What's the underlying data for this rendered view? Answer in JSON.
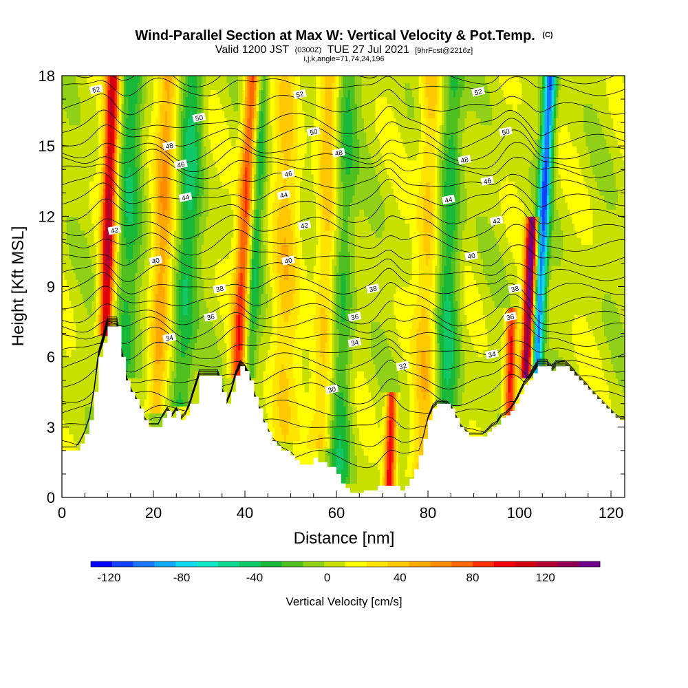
{
  "title": {
    "main": "Wind-Parallel Section at Max W: Vertical Velocity & Pot.Temp.",
    "main_suffix": "(C)",
    "valid_prefix": "Valid 1200 JST",
    "valid_utc": "(0300Z)",
    "valid_date": "TUE 27 Jul 2021",
    "forecast": "[9hrFcst@2216z]",
    "indices": "i,j,k,angle=71,74,24,196"
  },
  "chart_data": {
    "type": "heatmap",
    "title": "Wind-Parallel Section at Max W: Vertical Velocity & Pot.Temp.",
    "xlabel": "Distance [nm]",
    "ylabel": "Height [Kft MSL]",
    "xlim": [
      0,
      123
    ],
    "ylim": [
      0,
      18
    ],
    "x_ticks": [
      "0",
      "20",
      "40",
      "60",
      "80",
      "100",
      "120"
    ],
    "y_ticks": [
      "0",
      "3",
      "6",
      "9",
      "12",
      "15",
      "18"
    ],
    "colorbar": {
      "label": "Vertical Velocity [cm/s]",
      "tick_labels": [
        "-120",
        "-80",
        "-40",
        "0",
        "40",
        "80",
        "120"
      ],
      "range": [
        -130,
        150
      ],
      "colors": [
        "#0000ff",
        "#1040ff",
        "#1a78ff",
        "#10a8f8",
        "#10d8f0",
        "#10e8c8",
        "#10d890",
        "#10c868",
        "#18b838",
        "#50c020",
        "#90d018",
        "#c8e000",
        "#ffff00",
        "#ffe400",
        "#ffc800",
        "#ffa800",
        "#ff8c00",
        "#ff6800",
        "#ff3000",
        "#f00000",
        "#d00010",
        "#b00030",
        "#900050",
        "#70008c"
      ]
    },
    "terrain_kft": [
      [
        0,
        2.0
      ],
      [
        3,
        2.0
      ],
      [
        4,
        2.3
      ],
      [
        5,
        2.7
      ],
      [
        6,
        3.3
      ],
      [
        7,
        4.5
      ],
      [
        8,
        6.0
      ],
      [
        9,
        6.6
      ],
      [
        10,
        7.3
      ],
      [
        12,
        7.3
      ],
      [
        13,
        6.0
      ],
      [
        14,
        5.0
      ],
      [
        15,
        4.5
      ],
      [
        16,
        4.2
      ],
      [
        17,
        3.8
      ],
      [
        18,
        3.3
      ],
      [
        19,
        3.0
      ],
      [
        21,
        3.0
      ],
      [
        22,
        3.4
      ],
      [
        23,
        3.7
      ],
      [
        24,
        3.4
      ],
      [
        25,
        3.7
      ],
      [
        26,
        3.3
      ],
      [
        27,
        3.5
      ],
      [
        28,
        4.0
      ],
      [
        30,
        5.2
      ],
      [
        34,
        5.2
      ],
      [
        35,
        4.5
      ],
      [
        36,
        4.0
      ],
      [
        37,
        4.5
      ],
      [
        38,
        5.2
      ],
      [
        39,
        5.6
      ],
      [
        40,
        5.4
      ],
      [
        41,
        5.0
      ],
      [
        42,
        4.3
      ],
      [
        43,
        3.8
      ],
      [
        44,
        3.2
      ],
      [
        45,
        2.8
      ],
      [
        46,
        2.4
      ],
      [
        47,
        2.2
      ],
      [
        48,
        2.0
      ],
      [
        50,
        1.8
      ],
      [
        51,
        1.6
      ],
      [
        52,
        1.4
      ],
      [
        54,
        1.4
      ],
      [
        55,
        1.7
      ],
      [
        56,
        1.5
      ],
      [
        58,
        1.3
      ],
      [
        60,
        1.0
      ],
      [
        61,
        0.6
      ],
      [
        62,
        0.4
      ],
      [
        63,
        0.2
      ],
      [
        65,
        0.2
      ],
      [
        66,
        0.3
      ],
      [
        68,
        0.3
      ],
      [
        69,
        0.5
      ],
      [
        72,
        0.5
      ],
      [
        74,
        0.3
      ],
      [
        75,
        0.5
      ],
      [
        76,
        0.8
      ],
      [
        77,
        1.2
      ],
      [
        78,
        1.8
      ],
      [
        79,
        2.5
      ],
      [
        80,
        3.3
      ],
      [
        81,
        3.8
      ],
      [
        82,
        4.0
      ],
      [
        84,
        4.0
      ],
      [
        85,
        3.8
      ],
      [
        86,
        3.4
      ],
      [
        87,
        3.0
      ],
      [
        88,
        2.8
      ],
      [
        89,
        2.6
      ],
      [
        92,
        2.6
      ],
      [
        93,
        2.8
      ],
      [
        94,
        3.0
      ],
      [
        95,
        3.1
      ],
      [
        96,
        3.4
      ],
      [
        97,
        3.5
      ],
      [
        98,
        3.7
      ],
      [
        99,
        4.0
      ],
      [
        100,
        4.4
      ],
      [
        101,
        4.8
      ],
      [
        102,
        5.0
      ],
      [
        103,
        5.3
      ],
      [
        104,
        5.6
      ],
      [
        106,
        5.6
      ],
      [
        107,
        5.4
      ],
      [
        108,
        5.6
      ],
      [
        110,
        5.6
      ],
      [
        111,
        5.4
      ],
      [
        112,
        5.2
      ],
      [
        113,
        5.0
      ],
      [
        114,
        4.8
      ],
      [
        115,
        4.6
      ],
      [
        116,
        4.4
      ],
      [
        117,
        4.2
      ],
      [
        118,
        4.0
      ],
      [
        119,
        3.8
      ],
      [
        120,
        3.6
      ],
      [
        121,
        3.4
      ],
      [
        122,
        3.3
      ],
      [
        123,
        3.3
      ]
    ],
    "updrafts": [
      {
        "x": 9.5,
        "w": 1.5,
        "z0": 7.0,
        "z1": 18,
        "tilt": 0.15,
        "v": 110
      },
      {
        "x": 20.5,
        "w": 2.2,
        "z0": 3.5,
        "z1": 18,
        "tilt": 0.2,
        "v": 45
      },
      {
        "x": 38.5,
        "w": 1.7,
        "z0": 5.0,
        "z1": 18,
        "tilt": 0.25,
        "v": 90
      },
      {
        "x": 48.0,
        "w": 3.0,
        "z0": 2.5,
        "z1": 18,
        "tilt": 0.1,
        "v": 30
      },
      {
        "x": 57.0,
        "w": 2.5,
        "z0": 2.0,
        "z1": 18,
        "tilt": 0.1,
        "v": 35
      },
      {
        "x": 71.5,
        "w": 1.2,
        "z0": 0.3,
        "z1": 4.5,
        "tilt": 0.15,
        "v": 95
      },
      {
        "x": 79.0,
        "w": 2.5,
        "z0": 1.0,
        "z1": 18,
        "tilt": 0.1,
        "v": 35
      },
      {
        "x": 97.8,
        "w": 1.2,
        "z0": 3.3,
        "z1": 8.0,
        "tilt": 0.1,
        "v": 90
      },
      {
        "x": 101.5,
        "w": 1.3,
        "z0": 5.0,
        "z1": 12.0,
        "tilt": 0.2,
        "v": 140
      }
    ],
    "downdrafts": [
      {
        "x": 13.5,
        "w": 2.5,
        "z0": 5.0,
        "z1": 18,
        "tilt": 0.15,
        "v": -35
      },
      {
        "x": 26.0,
        "w": 2.5,
        "z0": 4.0,
        "z1": 18,
        "tilt": 0.2,
        "v": -40
      },
      {
        "x": 40.5,
        "w": 1.8,
        "z0": 5.0,
        "z1": 18,
        "tilt": 0.25,
        "v": -45
      },
      {
        "x": 60.5,
        "w": 2.5,
        "z0": 0.5,
        "z1": 18,
        "tilt": 0.1,
        "v": -35
      },
      {
        "x": 84.0,
        "w": 2.5,
        "z0": 4.0,
        "z1": 18,
        "tilt": 0.1,
        "v": -40
      },
      {
        "x": 103.5,
        "w": 1.3,
        "z0": 5.0,
        "z1": 18,
        "tilt": 0.25,
        "v": -110
      }
    ],
    "theta_contours": [
      {
        "value": "30",
        "base_kft": 4.3
      },
      {
        "value": "32",
        "base_kft": 5.6
      },
      {
        "value": "34",
        "base_kft": 6.7
      },
      {
        "value": "36",
        "base_kft": 7.7
      },
      {
        "value": "38",
        "base_kft": 8.9
      },
      {
        "value": "40",
        "base_kft": 10.1
      },
      {
        "value": "42",
        "base_kft": 11.4
      },
      {
        "value": "44",
        "base_kft": 12.7
      },
      {
        "value": "46",
        "base_kft": 13.9
      },
      {
        "value": "48",
        "base_kft": 14.7
      },
      {
        "value": "50",
        "base_kft": 15.8
      },
      {
        "value": "52",
        "base_kft": 17.4
      }
    ],
    "contour_labels": [
      {
        "x": 7.5,
        "y": 17.4,
        "t": "52"
      },
      {
        "x": 30,
        "y": 16.2,
        "t": "50"
      },
      {
        "x": 23.5,
        "y": 15.0,
        "t": "48"
      },
      {
        "x": 26,
        "y": 14.2,
        "t": "46"
      },
      {
        "x": 27,
        "y": 12.8,
        "t": "44"
      },
      {
        "x": 11.5,
        "y": 11.4,
        "t": "42"
      },
      {
        "x": 20.5,
        "y": 10.1,
        "t": "40"
      },
      {
        "x": 34.5,
        "y": 8.9,
        "t": "38"
      },
      {
        "x": 32.5,
        "y": 7.7,
        "t": "36"
      },
      {
        "x": 23.5,
        "y": 6.8,
        "t": "34"
      },
      {
        "x": 52,
        "y": 17.2,
        "t": "52"
      },
      {
        "x": 55,
        "y": 15.6,
        "t": "50"
      },
      {
        "x": 60.5,
        "y": 14.7,
        "t": "48"
      },
      {
        "x": 49.5,
        "y": 13.8,
        "t": "46"
      },
      {
        "x": 48.5,
        "y": 12.9,
        "t": "44"
      },
      {
        "x": 53,
        "y": 11.6,
        "t": "42"
      },
      {
        "x": 49.5,
        "y": 10.1,
        "t": "40"
      },
      {
        "x": 68,
        "y": 8.9,
        "t": "38"
      },
      {
        "x": 64,
        "y": 7.7,
        "t": "36"
      },
      {
        "x": 64,
        "y": 6.6,
        "t": "34"
      },
      {
        "x": 74.5,
        "y": 5.6,
        "t": "32"
      },
      {
        "x": 59,
        "y": 4.6,
        "t": "30"
      },
      {
        "x": 91,
        "y": 17.3,
        "t": "52"
      },
      {
        "x": 97,
        "y": 15.6,
        "t": "50"
      },
      {
        "x": 88,
        "y": 14.4,
        "t": "48"
      },
      {
        "x": 93,
        "y": 13.5,
        "t": "46"
      },
      {
        "x": 84.5,
        "y": 12.7,
        "t": "44"
      },
      {
        "x": 95,
        "y": 11.8,
        "t": "42"
      },
      {
        "x": 89.5,
        "y": 10.3,
        "t": "40"
      },
      {
        "x": 99,
        "y": 8.9,
        "t": "38"
      },
      {
        "x": 98,
        "y": 7.7,
        "t": "36"
      },
      {
        "x": 94,
        "y": 6.1,
        "t": "34"
      }
    ]
  }
}
